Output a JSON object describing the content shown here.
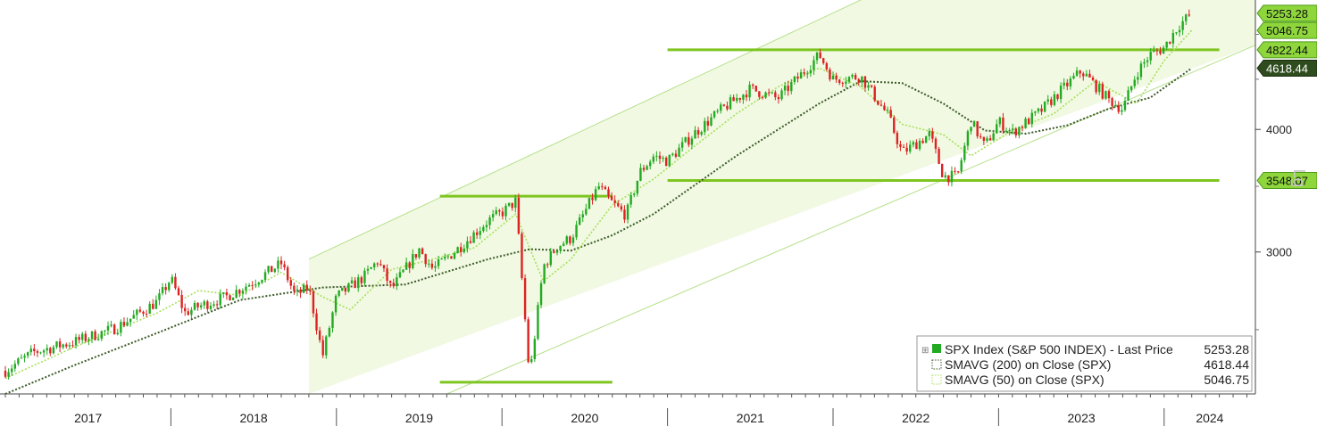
{
  "chart_data": {
    "type": "line",
    "y_scale": "log",
    "scale_label": "Lg",
    "x_range": [
      "2017-01",
      "2024-05"
    ],
    "ylim": [
      2150,
      5420
    ],
    "grid": false,
    "legend_position": "bottom-right",
    "x_tick_labels": [
      "2017",
      "2018",
      "2019",
      "2020",
      "2021",
      "2022",
      "2023",
      "2024"
    ],
    "y_tick_labels": [
      3000,
      4000
    ],
    "colors": {
      "up": "#22aa22",
      "down": "#dd2222",
      "channel_fill": "#f1f9e3",
      "level_line": "#7ec520",
      "sma200": "#3d5a28",
      "sma50": "#a6e05a",
      "tag_light": "#8ed63c",
      "tag_dark": "#2f4c1e"
    },
    "price_tags": [
      {
        "label": "5253.28",
        "style": "light",
        "value": 5253.28
      },
      {
        "label": "5046.75",
        "style": "light",
        "value": 5046.75
      },
      {
        "label": "4822.44",
        "style": "light",
        "value": 4822.44
      },
      {
        "label": "4618.44",
        "style": "dark",
        "value": 4618.44
      },
      {
        "label": "3548.07",
        "style": "light",
        "value": 3548.07
      }
    ],
    "levels": [
      {
        "from": "2021-01",
        "to": "2024-05",
        "value": 4822.44
      },
      {
        "from": "2021-01",
        "to": "2024-05",
        "value": 3548.07
      },
      {
        "from": "2019-08.5",
        "to": "2020-09",
        "value": 3420
      },
      {
        "from": "2019-08.5",
        "to": "2020-09",
        "value": 2210
      }
    ],
    "channel": {
      "upper": [
        [
          "2018-11",
          2950
        ],
        [
          "2022-03",
          5420
        ]
      ],
      "lower": [
        [
          "2019-09",
          2150
        ],
        [
          "2024-05",
          4700
        ]
      ],
      "fill_from": "2018-11"
    },
    "series": [
      {
        "name": "SPX Index",
        "kind": "price",
        "points": [
          [
            "2017-01",
            2270
          ],
          [
            "2017-03",
            2370
          ],
          [
            "2017-06",
            2430
          ],
          [
            "2017-09",
            2510
          ],
          [
            "2017-12",
            2670
          ],
          [
            "2018-01",
            2820
          ],
          [
            "2018-02",
            2600
          ],
          [
            "2018-03",
            2640
          ],
          [
            "2018-05",
            2700
          ],
          [
            "2018-07",
            2800
          ],
          [
            "2018-09",
            2920
          ],
          [
            "2018-10",
            2710
          ],
          [
            "2018-11",
            2760
          ],
          [
            "2018-12",
            2350
          ],
          [
            "2019-01",
            2700
          ],
          [
            "2019-03",
            2830
          ],
          [
            "2019-04",
            2940
          ],
          [
            "2019-05",
            2750
          ],
          [
            "2019-07",
            3020
          ],
          [
            "2019-08",
            2880
          ],
          [
            "2019-10",
            3040
          ],
          [
            "2019-12",
            3230
          ],
          [
            "2020-01",
            3290
          ],
          [
            "2020-02",
            3380
          ],
          [
            "2020-03",
            2237
          ],
          [
            "2020-04",
            2900
          ],
          [
            "2020-05",
            3040
          ],
          [
            "2020-06",
            3100
          ],
          [
            "2020-08",
            3500
          ],
          [
            "2020-09",
            3363
          ],
          [
            "2020-10",
            3270
          ],
          [
            "2020-11",
            3620
          ],
          [
            "2020-12",
            3756
          ],
          [
            "2021-01",
            3714
          ],
          [
            "2021-03",
            3970
          ],
          [
            "2021-05",
            4200
          ],
          [
            "2021-07",
            4400
          ],
          [
            "2021-09",
            4300
          ],
          [
            "2021-11",
            4600
          ],
          [
            "2021-12",
            4766
          ],
          [
            "2022-01",
            4500
          ],
          [
            "2022-03",
            4530
          ],
          [
            "2022-05",
            4130
          ],
          [
            "2022-06",
            3785
          ],
          [
            "2022-08",
            3955
          ],
          [
            "2022-09",
            3585
          ],
          [
            "2022-10",
            3580
          ],
          [
            "2022-11",
            4080
          ],
          [
            "2022-12",
            3840
          ],
          [
            "2023-01",
            4076
          ],
          [
            "2023-02",
            3970
          ],
          [
            "2023-04",
            4170
          ],
          [
            "2023-06",
            4450
          ],
          [
            "2023-07",
            4590
          ],
          [
            "2023-09",
            4288
          ],
          [
            "2023-10",
            4194
          ],
          [
            "2023-11",
            4568
          ],
          [
            "2023-12",
            4770
          ],
          [
            "2024-01",
            4846
          ],
          [
            "2024-02",
            5096
          ],
          [
            "2024-03",
            5253.28
          ]
        ]
      },
      {
        "name": "SMAVG (200) on Close (SPX)",
        "kind": "sma200",
        "points": [
          [
            "2017-01",
            2150
          ],
          [
            "2017-06",
            2300
          ],
          [
            "2017-12",
            2480
          ],
          [
            "2018-06",
            2680
          ],
          [
            "2018-12",
            2760
          ],
          [
            "2019-06",
            2780
          ],
          [
            "2019-12",
            2950
          ],
          [
            "2020-03",
            3020
          ],
          [
            "2020-06",
            3010
          ],
          [
            "2020-09",
            3120
          ],
          [
            "2020-12",
            3280
          ],
          [
            "2021-06",
            3760
          ],
          [
            "2021-12",
            4250
          ],
          [
            "2022-03",
            4480
          ],
          [
            "2022-06",
            4460
          ],
          [
            "2022-09",
            4250
          ],
          [
            "2022-12",
            3990
          ],
          [
            "2023-03",
            3960
          ],
          [
            "2023-06",
            4040
          ],
          [
            "2023-09",
            4200
          ],
          [
            "2023-12",
            4310
          ],
          [
            "2024-03",
            4618.44
          ]
        ]
      },
      {
        "name": "SMAVG (50) on Close (SPX)",
        "kind": "sma50",
        "points": [
          [
            "2017-01",
            2230
          ],
          [
            "2017-06",
            2400
          ],
          [
            "2017-12",
            2600
          ],
          [
            "2018-03",
            2740
          ],
          [
            "2018-06",
            2710
          ],
          [
            "2018-09",
            2860
          ],
          [
            "2018-12",
            2700
          ],
          [
            "2019-02",
            2620
          ],
          [
            "2019-05",
            2880
          ],
          [
            "2019-08",
            2950
          ],
          [
            "2019-11",
            3030
          ],
          [
            "2020-02",
            3280
          ],
          [
            "2020-04",
            2800
          ],
          [
            "2020-06",
            2950
          ],
          [
            "2020-09",
            3350
          ],
          [
            "2020-12",
            3560
          ],
          [
            "2021-03",
            3850
          ],
          [
            "2021-06",
            4150
          ],
          [
            "2021-09",
            4420
          ],
          [
            "2021-12",
            4620
          ],
          [
            "2022-03",
            4420
          ],
          [
            "2022-06",
            4050
          ],
          [
            "2022-09",
            3950
          ],
          [
            "2022-11",
            3760
          ],
          [
            "2023-02",
            3990
          ],
          [
            "2023-05",
            4150
          ],
          [
            "2023-08",
            4480
          ],
          [
            "2023-11",
            4250
          ],
          [
            "2024-01",
            4700
          ],
          [
            "2024-03",
            5046.75
          ]
        ]
      }
    ]
  },
  "legend": {
    "items": [
      {
        "label": "SPX Index (S&P 500 INDEX) - Last Price",
        "value": "5253.28"
      },
      {
        "label": "SMAVG (200)  on Close (SPX)",
        "value": "4618.44"
      },
      {
        "label": "SMAVG (50)  on Close (SPX)",
        "value": "5046.75"
      }
    ]
  }
}
